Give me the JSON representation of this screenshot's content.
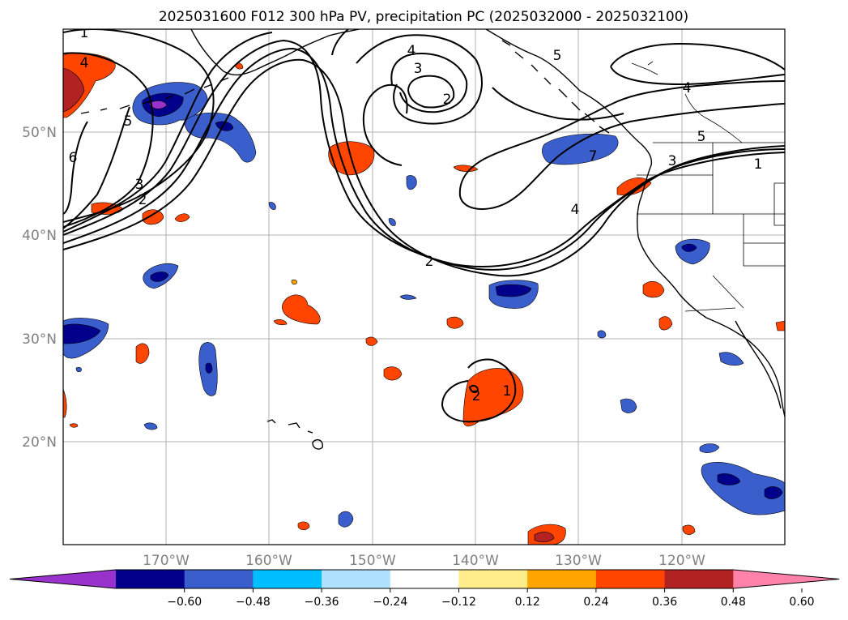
{
  "title": "2025031600 F012 300 hPa PV, precipitation PC (2025032000 - 2025032100)",
  "map": {
    "lon_range": [
      -180,
      -110
    ],
    "lat_range": [
      10,
      60
    ],
    "grid": true,
    "lat_labels": [
      "20°N",
      "30°N",
      "40°N",
      "50°N"
    ],
    "lon_labels": [
      "170°W",
      "160°W",
      "150°W",
      "140°W",
      "130°W",
      "120°W"
    ]
  },
  "colorbar": {
    "ticks": [
      "−0.60",
      "−0.48",
      "−0.36",
      "−0.24",
      "−0.12",
      "0.12",
      "0.24",
      "0.36",
      "0.48",
      "0.60"
    ],
    "colors": [
      "#9932cc",
      "#00008b",
      "#3a5fcd",
      "#00bfff",
      "#b0e2ff",
      "#ffffff",
      "#ffec8b",
      "#ffa500",
      "#ff4500",
      "#b22222",
      "#ff82ab"
    ],
    "extend": "both"
  },
  "contour_labels": [
    "1",
    "4",
    "5",
    "6",
    "3",
    "2",
    "4",
    "3",
    "2",
    "5",
    "4",
    "7",
    "5",
    "3",
    "1",
    "4",
    "2",
    "2",
    "1"
  ]
}
